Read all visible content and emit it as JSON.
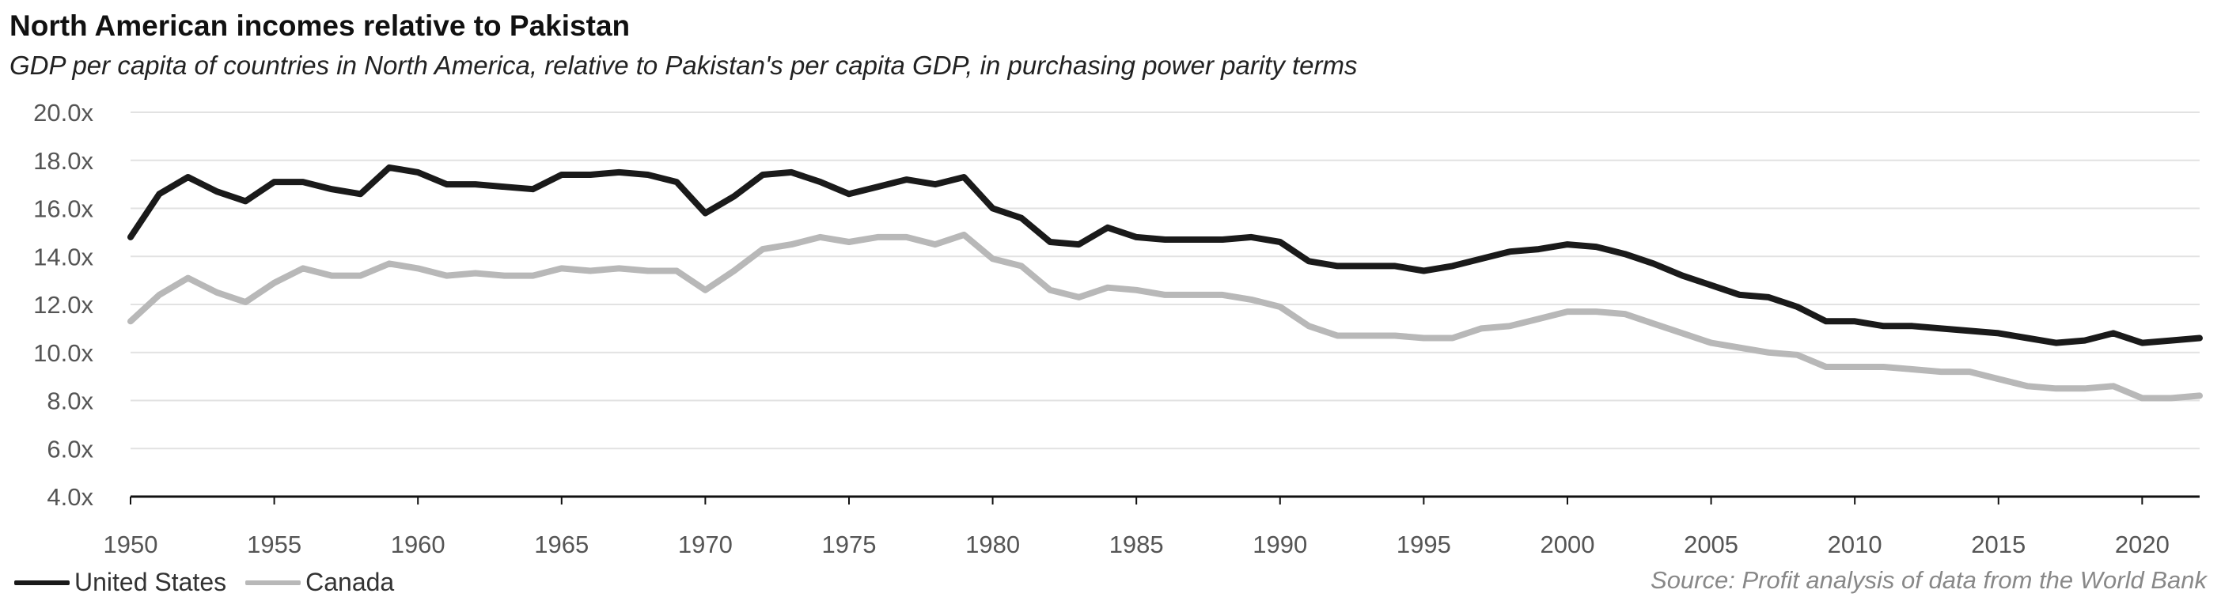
{
  "chart_data": {
    "type": "line",
    "title": "North American incomes relative to Pakistan",
    "subtitle": "GDP per capita of countries in North America, relative to Pakistan's per capita GDP, in purchasing power parity terms",
    "xlabel": "",
    "ylabel": "",
    "ylim": [
      4,
      20
    ],
    "xlim": [
      1950,
      2022
    ],
    "yticks": [
      "4.0x",
      "6.0x",
      "8.0x",
      "10.0x",
      "12.0x",
      "14.0x",
      "16.0x",
      "18.0x",
      "20.0x"
    ],
    "xticks": [
      "1950",
      "1955",
      "1960",
      "1965",
      "1970",
      "1975",
      "1980",
      "1985",
      "1990",
      "1995",
      "2000",
      "2005",
      "2010",
      "2015",
      "2020"
    ],
    "grid": true,
    "legend_position": "bottom-left",
    "x": [
      1950,
      1951,
      1952,
      1953,
      1954,
      1955,
      1956,
      1957,
      1958,
      1959,
      1960,
      1961,
      1962,
      1963,
      1964,
      1965,
      1966,
      1967,
      1968,
      1969,
      1970,
      1971,
      1972,
      1973,
      1974,
      1975,
      1976,
      1977,
      1978,
      1979,
      1980,
      1981,
      1982,
      1983,
      1984,
      1985,
      1986,
      1987,
      1988,
      1989,
      1990,
      1991,
      1992,
      1993,
      1994,
      1995,
      1996,
      1997,
      1998,
      1999,
      2000,
      2001,
      2002,
      2003,
      2004,
      2005,
      2006,
      2007,
      2008,
      2009,
      2010,
      2011,
      2012,
      2013,
      2014,
      2015,
      2016,
      2017,
      2018,
      2019,
      2020,
      2021,
      2022
    ],
    "series": [
      {
        "name": "United States",
        "color": "#1a1a1a",
        "values": [
          14.8,
          16.6,
          17.3,
          16.7,
          16.3,
          17.1,
          17.1,
          16.8,
          16.6,
          17.7,
          17.5,
          17.0,
          17.0,
          16.9,
          16.8,
          17.4,
          17.4,
          17.5,
          17.4,
          17.1,
          15.8,
          16.5,
          17.4,
          17.5,
          17.1,
          16.6,
          16.9,
          17.2,
          17.0,
          17.3,
          16.0,
          15.6,
          14.6,
          14.5,
          15.2,
          14.8,
          14.7,
          14.7,
          14.7,
          14.8,
          14.6,
          13.8,
          13.6,
          13.6,
          13.6,
          13.4,
          13.6,
          13.9,
          14.2,
          14.3,
          14.5,
          14.4,
          14.1,
          13.7,
          13.2,
          12.8,
          12.4,
          12.3,
          11.9,
          11.3,
          11.3,
          11.1,
          11.1,
          11.0,
          10.9,
          10.8,
          10.6,
          10.4,
          10.5,
          10.8,
          10.4,
          10.5,
          10.6
        ]
      },
      {
        "name": "Canada",
        "color": "#b8b8b8",
        "values": [
          11.3,
          12.4,
          13.1,
          12.5,
          12.1,
          12.9,
          13.5,
          13.2,
          13.2,
          13.7,
          13.5,
          13.2,
          13.3,
          13.2,
          13.2,
          13.5,
          13.4,
          13.5,
          13.4,
          13.4,
          12.6,
          13.4,
          14.3,
          14.5,
          14.8,
          14.6,
          14.8,
          14.8,
          14.5,
          14.9,
          13.9,
          13.6,
          12.6,
          12.3,
          12.7,
          12.6,
          12.4,
          12.4,
          12.4,
          12.2,
          11.9,
          11.1,
          10.7,
          10.7,
          10.7,
          10.6,
          10.6,
          11.0,
          11.1,
          11.4,
          11.7,
          11.7,
          11.6,
          11.2,
          10.8,
          10.4,
          10.2,
          10.0,
          9.9,
          9.4,
          9.4,
          9.4,
          9.3,
          9.2,
          9.2,
          8.9,
          8.6,
          8.5,
          8.5,
          8.6,
          8.1,
          8.1,
          8.2
        ]
      }
    ],
    "source": "Source: Profit analysis of data from the World Bank"
  }
}
